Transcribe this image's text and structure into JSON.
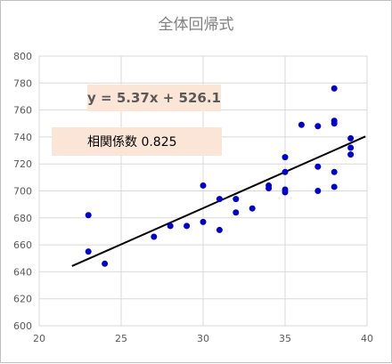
{
  "chart_data": {
    "type": "scatter",
    "title": "全体回帰式",
    "xlim": [
      20,
      40
    ],
    "ylim": [
      600,
      800
    ],
    "xticks": [
      20,
      25,
      30,
      35,
      40
    ],
    "yticks": [
      600,
      620,
      640,
      660,
      680,
      700,
      720,
      740,
      760,
      780,
      800
    ],
    "grid": true,
    "series": [
      {
        "points": [
          [
            23,
            682
          ],
          [
            23,
            655
          ],
          [
            24,
            646
          ],
          [
            27,
            666
          ],
          [
            28,
            674
          ],
          [
            29,
            674
          ],
          [
            30,
            704
          ],
          [
            30,
            677
          ],
          [
            31,
            694
          ],
          [
            31,
            671
          ],
          [
            32,
            694
          ],
          [
            32,
            684
          ],
          [
            33,
            687
          ],
          [
            34,
            704
          ],
          [
            34,
            702
          ],
          [
            35,
            725
          ],
          [
            35,
            714
          ],
          [
            35,
            701
          ],
          [
            35,
            699
          ],
          [
            36,
            749
          ],
          [
            37,
            748
          ],
          [
            37,
            718
          ],
          [
            37,
            700
          ],
          [
            38,
            776
          ],
          [
            38,
            752
          ],
          [
            38,
            750
          ],
          [
            38,
            714
          ],
          [
            38,
            703
          ],
          [
            39,
            739
          ],
          [
            39,
            732
          ],
          [
            39,
            727
          ]
        ],
        "color": "#0000cc"
      }
    ],
    "trendline": {
      "slope": 5.37,
      "intercept": 526.1,
      "x_range": [
        22,
        39.9
      ],
      "color": "#000000"
    },
    "annotations": {
      "equation": "y = 5.37x + 526.1",
      "correlation": "相関係数  0.825"
    },
    "annotation_bg": "#fbe5d6"
  }
}
